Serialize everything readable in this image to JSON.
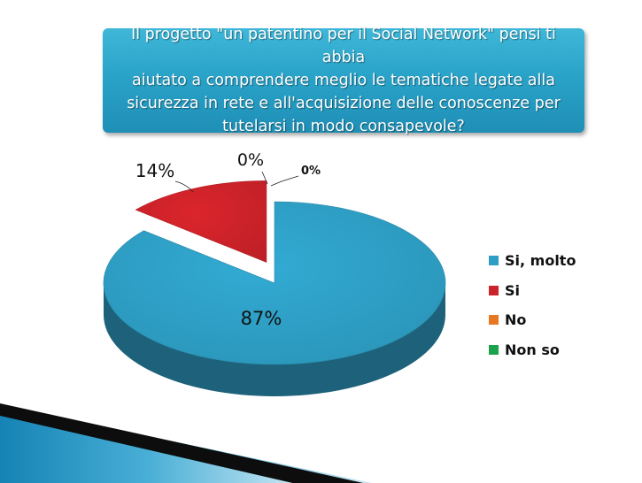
{
  "title": "Il progetto \"un patentino per il Social Network\" pensi ti abbia aiutato a comprendere meglio le tematiche legate alla sicurezza in rete e all'acquisizione delle conoscenze per tutelarsi in modo consapevole?",
  "title_lines": [
    "Il progetto \"un patentino per il Social Network\" pensi ti abbia",
    "aiutato a comprendere meglio le tematiche legate alla",
    "sicurezza in rete e all'acquisizione delle conoscenze per",
    "tutelarsi in modo consapevole?"
  ],
  "chart_data": {
    "type": "pie",
    "style": "3d-exploded",
    "title": "Il progetto \"un patentino per il Social Network\" pensi ti abbia aiutato a comprendere meglio le tematiche legate alla sicurezza in rete e all'acquisizione delle conoscenze per tutelarsi in modo consapevole?",
    "categories": [
      "Si, molto",
      "Si",
      "No",
      "Non so"
    ],
    "values": [
      87,
      14,
      0,
      0
    ],
    "data_labels": [
      "87%",
      "14%",
      "0%",
      "0%"
    ],
    "colors": [
      "#2e9ec4",
      "#cc2229",
      "#e87722",
      "#1aa34a"
    ],
    "legend_position": "right"
  }
}
